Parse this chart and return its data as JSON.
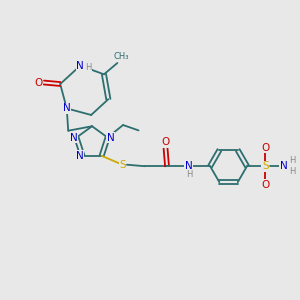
{
  "bg_color": "#e8e8e8",
  "atom_colors": {
    "C": "#2d6e6e",
    "N": "#0000cc",
    "O": "#cc0000",
    "S": "#ccaa00",
    "H": "#888888"
  },
  "bond_color": "#2d6e6e",
  "font_size": 7.5
}
